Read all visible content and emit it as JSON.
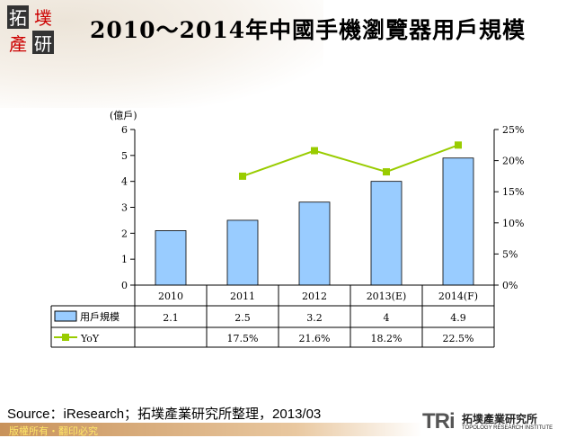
{
  "title": "2010～2014年中國手機瀏覽器用戶規模",
  "logo": {
    "text": "拓墣產研"
  },
  "chart_data": {
    "type": "bar+line",
    "title": "2010～2014年中國手機瀏覽器用戶規模",
    "categories": [
      "2010",
      "2011",
      "2012",
      "2013(E)",
      "2014(F)"
    ],
    "y_unit_label": "(億戶)",
    "ylim": [
      0,
      6
    ],
    "yticks": [
      "0",
      "1",
      "2",
      "3",
      "4",
      "5",
      "6"
    ],
    "y2lim": [
      0,
      25
    ],
    "y2ticks": [
      "0%",
      "5%",
      "10%",
      "15%",
      "20%",
      "25%"
    ],
    "series": [
      {
        "name": "用戶規模",
        "type": "bar",
        "axis": "left",
        "color": "#99ccff",
        "values": [
          2.1,
          2.5,
          3.2,
          4,
          4.9
        ],
        "labels": [
          "2.1",
          "2.5",
          "3.2",
          "4",
          "4.9"
        ]
      },
      {
        "name": "YoY",
        "type": "line",
        "axis": "right",
        "color": "#99cc00",
        "values": [
          null,
          17.5,
          21.6,
          18.2,
          22.5
        ],
        "labels": [
          "",
          "17.5%",
          "21.6%",
          "18.2%",
          "22.5%"
        ]
      }
    ],
    "data_table": true,
    "grid": false
  },
  "source": "Source：iResearch；拓墣產業研究所整理，2013/03",
  "footer": {
    "copyright": "版權所有・翻印必究",
    "brand": "TRi",
    "brand_cn": "拓墣產業研究所",
    "brand_en": "TOPOLOGY RESEARCH INSTITUTE"
  }
}
